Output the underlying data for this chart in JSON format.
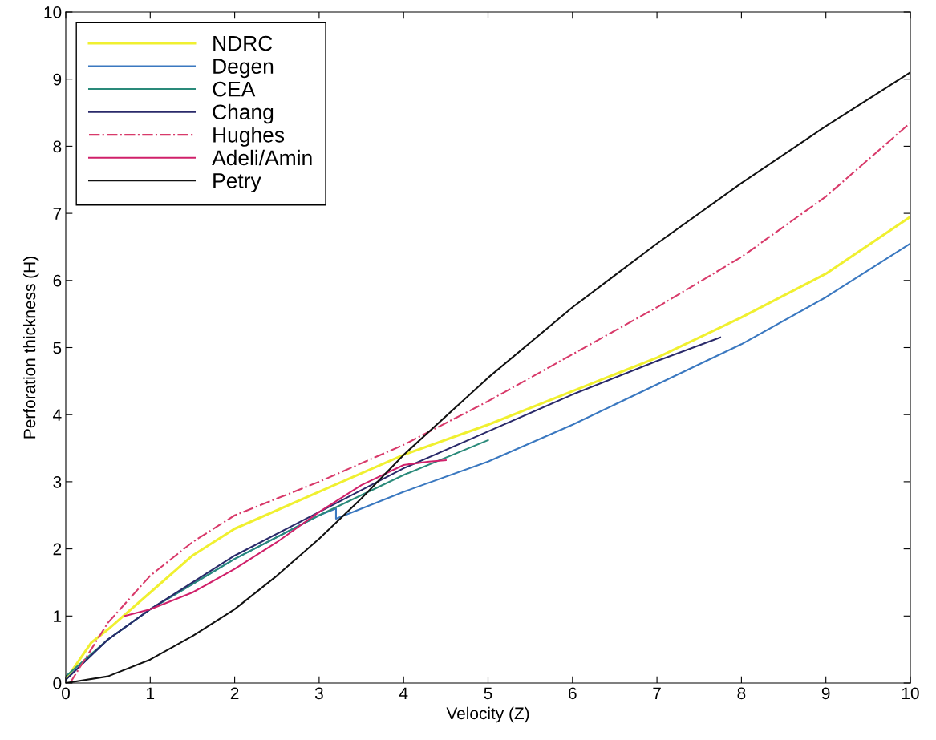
{
  "chart_data": {
    "type": "line",
    "xlabel": "Velocity (Z)",
    "ylabel": "Perforation thickness (H)",
    "xlim": [
      0,
      10
    ],
    "ylim": [
      0,
      10
    ],
    "xticks": [
      0,
      1,
      2,
      3,
      4,
      5,
      6,
      7,
      8,
      9,
      10
    ],
    "yticks": [
      0,
      1,
      2,
      3,
      4,
      5,
      6,
      7,
      8,
      9,
      10
    ],
    "grid": false,
    "legend": "top left",
    "marker": "none",
    "series": [
      {
        "name": "NDRC",
        "color": "#f0f030",
        "x": [
          0,
          0.3,
          0.5,
          1,
          1.5,
          2,
          3,
          4,
          5,
          6,
          7,
          8,
          9,
          10
        ],
        "values": [
          0.05,
          0.6,
          0.8,
          1.35,
          1.9,
          2.3,
          2.85,
          3.4,
          3.85,
          4.35,
          4.85,
          5.45,
          6.1,
          6.95
        ]
      },
      {
        "name": "Degen",
        "color": "#3a78c0",
        "x": [
          0,
          0.5,
          1,
          2,
          3,
          3.2,
          3.2,
          4,
          5,
          6,
          7,
          8,
          9,
          10
        ],
        "values": [
          0.05,
          0.65,
          1.1,
          1.85,
          2.5,
          2.6,
          2.45,
          2.85,
          3.3,
          3.85,
          4.45,
          5.05,
          5.75,
          6.55
        ]
      },
      {
        "name": "CEA",
        "color": "#2a8a7a",
        "x": [
          0,
          0.5,
          1,
          2,
          3,
          4,
          5
        ],
        "values": [
          0.1,
          0.65,
          1.1,
          1.85,
          2.5,
          3.1,
          3.62
        ]
      },
      {
        "name": "Chang",
        "color": "#2a2a6a",
        "x": [
          0,
          0.5,
          1,
          2,
          3,
          4,
          5,
          6,
          7,
          7.75
        ],
        "values": [
          0.05,
          0.65,
          1.1,
          1.9,
          2.55,
          3.2,
          3.75,
          4.3,
          4.8,
          5.15
        ]
      },
      {
        "name": "Hughes",
        "color": "#d83a6a",
        "line_style": "dashdot",
        "x": [
          0.05,
          0.3,
          0.5,
          1,
          1.5,
          2,
          2.5,
          3,
          4,
          5,
          6,
          7,
          8,
          9,
          10
        ],
        "values": [
          0,
          0.5,
          0.9,
          1.6,
          2.1,
          2.5,
          2.75,
          3.0,
          3.55,
          4.2,
          4.9,
          5.6,
          6.35,
          7.25,
          8.35
        ]
      },
      {
        "name": "Adeli/Amin",
        "color": "#d0206a",
        "x": [
          0.7,
          1,
          1.5,
          2,
          2.5,
          3,
          3.5,
          4,
          4.3,
          4.5
        ],
        "values": [
          1.0,
          1.1,
          1.35,
          1.7,
          2.1,
          2.55,
          2.95,
          3.25,
          3.3,
          3.32
        ]
      },
      {
        "name": "Petry",
        "color": "#111111",
        "x": [
          0,
          0.5,
          1,
          1.5,
          2,
          2.5,
          3,
          3.5,
          4,
          5,
          6,
          7,
          8,
          9,
          10
        ],
        "values": [
          0,
          0.1,
          0.35,
          0.7,
          1.1,
          1.6,
          2.15,
          2.75,
          3.4,
          4.55,
          5.6,
          6.55,
          7.45,
          8.3,
          9.1
        ]
      }
    ]
  }
}
